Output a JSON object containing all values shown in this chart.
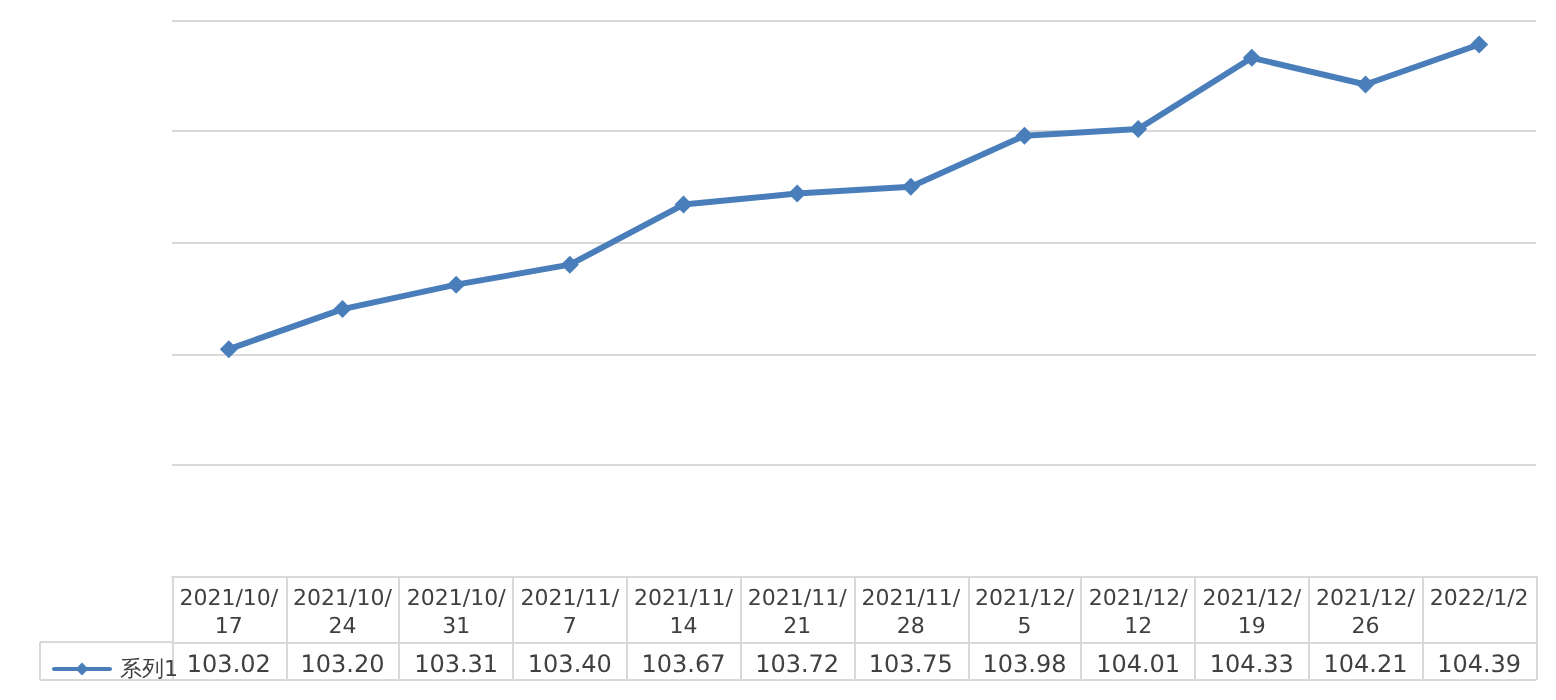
{
  "chart_data": {
    "type": "line",
    "categories": [
      "2021/10/17",
      "2021/10/24",
      "2021/10/31",
      "2021/11/7",
      "2021/11/14",
      "2021/11/21",
      "2021/11/28",
      "2021/12/5",
      "2021/12/12",
      "2021/12/19",
      "2021/12/26",
      "2022/1/2"
    ],
    "series": [
      {
        "name": "系列1",
        "color": "#4a7ebb",
        "values": [
          103.02,
          103.2,
          103.31,
          103.4,
          103.67,
          103.72,
          103.75,
          103.98,
          104.01,
          104.33,
          104.21,
          104.39
        ],
        "value_labels": [
          "103.02",
          "103.20",
          "103.31",
          "103.40",
          "103.67",
          "103.72",
          "103.75",
          "103.98",
          "104.01",
          "104.33",
          "104.21",
          "104.39"
        ]
      }
    ],
    "ylim": [
      102,
      104.5
    ],
    "yticks": [
      {
        "value": 102,
        "label": null
      },
      {
        "value": 102.5,
        "label": null
      },
      {
        "value": 103,
        "label": null
      },
      {
        "value": 103.5,
        "label": null
      },
      {
        "value": 104,
        "label": null
      },
      {
        "value": 104.5,
        "label": null
      }
    ],
    "tick_labels": "x",
    "grid": "y",
    "legend": "bottom left",
    "marker": "diamond",
    "line_style": "solid"
  }
}
